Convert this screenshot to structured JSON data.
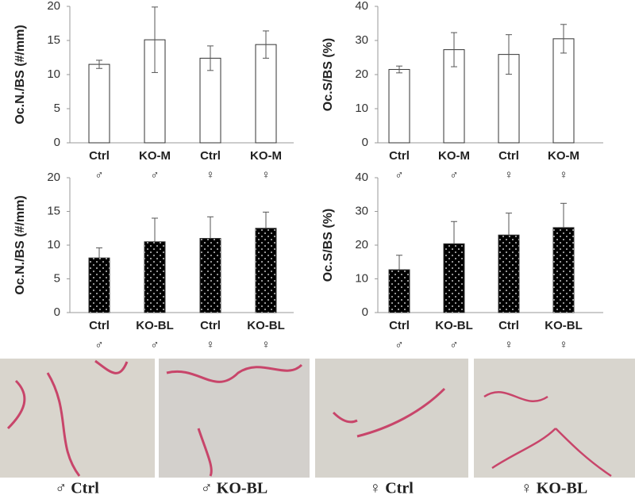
{
  "chart_data": [
    {
      "type": "bar",
      "y_label": "Oc.N./BS (#/mm)",
      "ylim": [
        0,
        20
      ],
      "yticks": [
        0,
        5,
        10,
        15,
        20
      ],
      "categories": [
        [
          "Ctrl",
          "♂"
        ],
        [
          "KO-M",
          "♂"
        ],
        [
          "Ctrl",
          "♀"
        ],
        [
          "KO-M",
          "♀"
        ]
      ],
      "values": [
        11.5,
        15.1,
        12.4,
        14.4
      ],
      "errors": [
        0.6,
        4.8,
        1.8,
        2.0
      ],
      "color": "#ffffff",
      "error_bars": "both"
    },
    {
      "type": "bar",
      "y_label": "Oc.S/BS (%)",
      "ylim": [
        0,
        40
      ],
      "yticks": [
        0,
        10,
        20,
        30,
        40
      ],
      "categories": [
        [
          "Ctrl",
          "♂"
        ],
        [
          "KO-M",
          "♂"
        ],
        [
          "Ctrl",
          "♀"
        ],
        [
          "KO-M",
          "♀"
        ]
      ],
      "values": [
        21.5,
        27.3,
        25.9,
        30.5
      ],
      "errors": [
        1.0,
        5.0,
        5.8,
        4.2
      ],
      "color": "#ffffff",
      "error_bars": "both"
    },
    {
      "type": "bar",
      "y_label": "Oc.N./BS (#/mm)",
      "ylim": [
        0,
        20
      ],
      "yticks": [
        0,
        5,
        10,
        15,
        20
      ],
      "categories": [
        [
          "Ctrl",
          "♂"
        ],
        [
          "KO-BL",
          "♂"
        ],
        [
          "Ctrl",
          "♀"
        ],
        [
          "KO-BL",
          "♀"
        ]
      ],
      "values": [
        8.1,
        10.5,
        11.0,
        12.5
      ],
      "errors": [
        1.5,
        3.5,
        3.2,
        2.4
      ],
      "color": "#000000",
      "pattern": "dots",
      "error_bars": "upper"
    },
    {
      "type": "bar",
      "y_label": "Oc.S/BS (%)",
      "ylim": [
        0,
        40
      ],
      "yticks": [
        0,
        10,
        20,
        30,
        40
      ],
      "categories": [
        [
          "Ctrl",
          "♂"
        ],
        [
          "KO-BL",
          "♂"
        ],
        [
          "Ctrl",
          "♀"
        ],
        [
          "KO-BL",
          "♀"
        ]
      ],
      "values": [
        12.7,
        20.4,
        23.0,
        25.2
      ],
      "errors": [
        4.3,
        6.6,
        6.5,
        7.2
      ],
      "color": "#000000",
      "pattern": "dots",
      "error_bars": "upper"
    }
  ],
  "images": {
    "captions": [
      "♂ Ctrl",
      "♂ KO-BL",
      "♀ Ctrl",
      "♀ KO-BL"
    ]
  }
}
